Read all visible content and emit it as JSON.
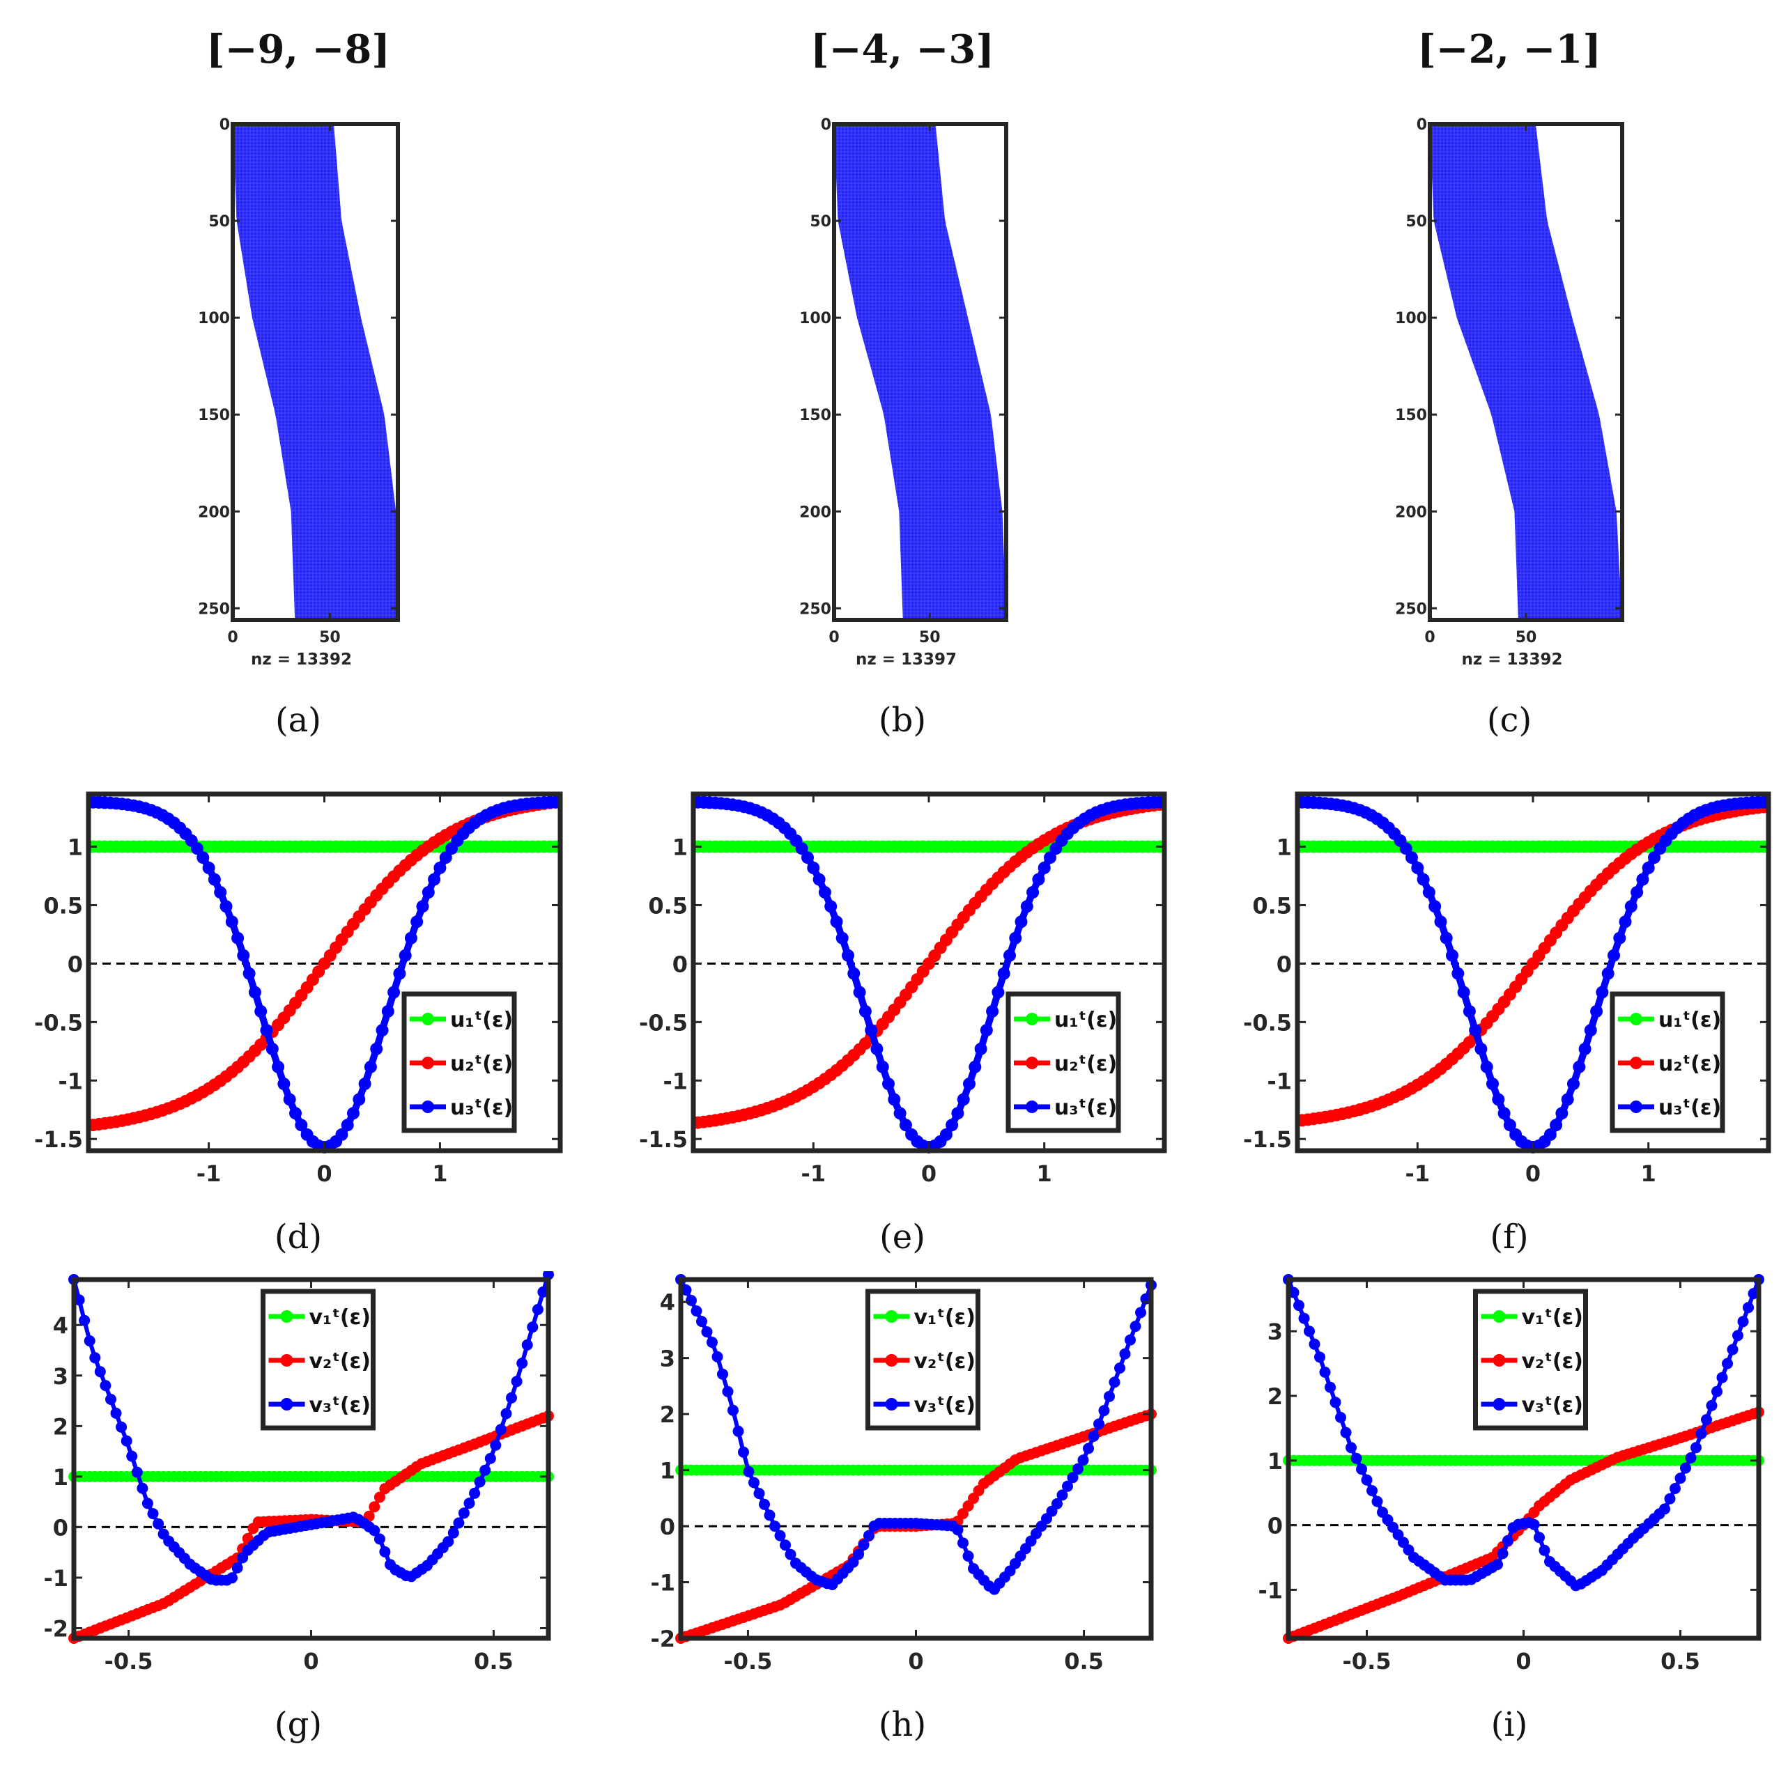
{
  "chart_data": [
    {
      "panel": "a",
      "type": "spy",
      "title": "[−9, −8]",
      "caption": "(a)",
      "xlabel": "nz = 13392",
      "xlim": [
        0,
        85
      ],
      "ylim": [
        0,
        256
      ],
      "xticks": [
        0,
        50
      ],
      "yticks": [
        0,
        50,
        100,
        150,
        200,
        250
      ],
      "nz": 13392,
      "band_left": [
        [
          0,
          0
        ],
        [
          50,
          2
        ],
        [
          100,
          10
        ],
        [
          150,
          22
        ],
        [
          200,
          30
        ],
        [
          256,
          32
        ]
      ],
      "band_right": [
        [
          0,
          52
        ],
        [
          50,
          56
        ],
        [
          100,
          66
        ],
        [
          150,
          78
        ],
        [
          200,
          84
        ],
        [
          256,
          85
        ]
      ]
    },
    {
      "panel": "b",
      "type": "spy",
      "title": "[−4, −3]",
      "caption": "(b)",
      "xlabel": "nz = 13397",
      "xlim": [
        0,
        90
      ],
      "ylim": [
        0,
        256
      ],
      "xticks": [
        0,
        50
      ],
      "yticks": [
        0,
        50,
        100,
        150,
        200,
        250
      ],
      "nz": 13397,
      "band_left": [
        [
          0,
          0
        ],
        [
          50,
          2
        ],
        [
          100,
          12
        ],
        [
          150,
          26
        ],
        [
          200,
          34
        ],
        [
          256,
          36
        ]
      ],
      "band_right": [
        [
          0,
          53
        ],
        [
          50,
          58
        ],
        [
          100,
          70
        ],
        [
          150,
          82
        ],
        [
          200,
          88
        ],
        [
          256,
          90
        ]
      ]
    },
    {
      "panel": "c",
      "type": "spy",
      "title": "[−2, −1]",
      "caption": "(c)",
      "xlabel": "nz = 13392",
      "xlim": [
        0,
        100
      ],
      "ylim": [
        0,
        256
      ],
      "xticks": [
        0,
        50
      ],
      "yticks": [
        0,
        50,
        100,
        150,
        200,
        250
      ],
      "nz": 13392,
      "band_left": [
        [
          0,
          0
        ],
        [
          50,
          2
        ],
        [
          100,
          14
        ],
        [
          150,
          32
        ],
        [
          200,
          44
        ],
        [
          256,
          46
        ]
      ],
      "band_right": [
        [
          0,
          55
        ],
        [
          50,
          61
        ],
        [
          100,
          74
        ],
        [
          150,
          88
        ],
        [
          200,
          97
        ],
        [
          256,
          100
        ]
      ]
    },
    {
      "panel": "d",
      "type": "line",
      "caption": "(d)",
      "xlim": [
        -2.04,
        2.04
      ],
      "ylim": [
        -1.6,
        1.45
      ],
      "xticks": [
        -1,
        0,
        1
      ],
      "yticks": [
        -1.5,
        -1,
        -0.5,
        0,
        0.5,
        1
      ],
      "legend": [
        "u₁ᵗ(ε)",
        "u₂ᵗ(ε)",
        "u₃ᵗ(ε)"
      ],
      "legend_position": "lower-right",
      "series": [
        {
          "name": "u₁ᵗ(ε)",
          "color": "#00ff00",
          "kind": "const",
          "value": 1
        },
        {
          "name": "u₂ᵗ(ε)",
          "color": "#ff0000",
          "kind": "tanh",
          "amplitude": 1.38,
          "scale": 1.05
        },
        {
          "name": "u₃ᵗ(ε)",
          "color": "#0000ff",
          "kind": "bell",
          "amplitude": 1.42,
          "sigma": 0.55
        }
      ]
    },
    {
      "panel": "e",
      "type": "line",
      "caption": "(e)",
      "xlim": [
        -2.04,
        2.04
      ],
      "ylim": [
        -1.6,
        1.45
      ],
      "xticks": [
        -1,
        0,
        1
      ],
      "yticks": [
        -1.5,
        -1,
        -0.5,
        0,
        0.5,
        1
      ],
      "legend": [
        "u₁ᵗ(ε)",
        "u₂ᵗ(ε)",
        "u₃ᵗ(ε)"
      ],
      "legend_position": "lower-right",
      "series": [
        {
          "name": "u₁ᵗ(ε)",
          "color": "#00ff00",
          "kind": "const",
          "value": 1
        },
        {
          "name": "u₂ᵗ(ε)",
          "color": "#ff0000",
          "kind": "tanh",
          "amplitude": 1.36,
          "scale": 1.05
        },
        {
          "name": "u₃ᵗ(ε)",
          "color": "#0000ff",
          "kind": "bell",
          "amplitude": 1.42,
          "sigma": 0.55
        }
      ]
    },
    {
      "panel": "f",
      "type": "line",
      "caption": "(f)",
      "xlim": [
        -2.04,
        2.04
      ],
      "ylim": [
        -1.6,
        1.45
      ],
      "xticks": [
        -1,
        0,
        1
      ],
      "yticks": [
        -1.5,
        -1,
        -0.5,
        0,
        0.5,
        1
      ],
      "legend": [
        "u₁ᵗ(ε)",
        "u₂ᵗ(ε)",
        "u₃ᵗ(ε)"
      ],
      "legend_position": "lower-right",
      "series": [
        {
          "name": "u₁ᵗ(ε)",
          "color": "#00ff00",
          "kind": "const",
          "value": 1
        },
        {
          "name": "u₂ᵗ(ε)",
          "color": "#ff0000",
          "kind": "tanh",
          "amplitude": 1.34,
          "scale": 1.05
        },
        {
          "name": "u₃ᵗ(ε)",
          "color": "#0000ff",
          "kind": "bell",
          "amplitude": 1.42,
          "sigma": 0.55
        }
      ]
    },
    {
      "panel": "g",
      "type": "line",
      "caption": "(g)",
      "xlim": [
        -0.65,
        0.65
      ],
      "ylim": [
        -2.2,
        4.9
      ],
      "xticks": [
        -0.5,
        0,
        0.5
      ],
      "yticks": [
        -2,
        -1,
        0,
        1,
        2,
        3,
        4
      ],
      "legend": [
        "v₁ᵗ(ε)",
        "v₂ᵗ(ε)",
        "v₃ᵗ(ε)"
      ],
      "legend_position": "top-center",
      "series": [
        {
          "name": "v₁ᵗ(ε)",
          "color": "#00ff00",
          "points": [
            [
              -0.65,
              1
            ],
            [
              0.65,
              1
            ]
          ]
        },
        {
          "name": "v₂ᵗ(ε)",
          "color": "#ff0000",
          "points": [
            [
              -0.65,
              -2.2
            ],
            [
              -0.4,
              -1.5
            ],
            [
              -0.2,
              -0.6
            ],
            [
              -0.15,
              0.1
            ],
            [
              0,
              0.15
            ],
            [
              0.15,
              0.1
            ],
            [
              0.2,
              0.75
            ],
            [
              0.3,
              1.25
            ],
            [
              0.45,
              1.65
            ],
            [
              0.65,
              2.2
            ]
          ]
        },
        {
          "name": "v₃ᵗ(ε)",
          "color": "#0000ff",
          "points": [
            [
              -0.65,
              4.9
            ],
            [
              -0.6,
              3.5
            ],
            [
              -0.5,
              1.6
            ],
            [
              -0.45,
              0.5
            ],
            [
              -0.4,
              -0.2
            ],
            [
              -0.33,
              -0.75
            ],
            [
              -0.27,
              -1.05
            ],
            [
              -0.22,
              -1.05
            ],
            [
              -0.18,
              -0.5
            ],
            [
              -0.12,
              -0.1
            ],
            [
              0,
              0.05
            ],
            [
              0.12,
              0.2
            ],
            [
              0.18,
              -0.1
            ],
            [
              0.22,
              -0.8
            ],
            [
              0.27,
              -1.0
            ],
            [
              0.32,
              -0.75
            ],
            [
              0.38,
              -0.25
            ],
            [
              0.45,
              0.7
            ],
            [
              0.5,
              1.5
            ],
            [
              0.56,
              2.8
            ],
            [
              0.6,
              3.8
            ],
            [
              0.65,
              5.0
            ]
          ]
        }
      ]
    },
    {
      "panel": "h",
      "type": "line",
      "caption": "(h)",
      "xlim": [
        -0.7,
        0.7
      ],
      "ylim": [
        -2.0,
        4.4
      ],
      "xticks": [
        -0.5,
        0,
        0.5
      ],
      "yticks": [
        -2,
        -1,
        0,
        1,
        2,
        3,
        4
      ],
      "legend": [
        "v₁ᵗ(ε)",
        "v₂ᵗ(ε)",
        "v₃ᵗ(ε)"
      ],
      "legend_position": "top-center",
      "series": [
        {
          "name": "v₁ᵗ(ε)",
          "color": "#00ff00",
          "points": [
            [
              -0.7,
              1
            ],
            [
              0.7,
              1
            ]
          ]
        },
        {
          "name": "v₂ᵗ(ε)",
          "color": "#ff0000",
          "points": [
            [
              -0.7,
              -2.0
            ],
            [
              -0.4,
              -1.4
            ],
            [
              -0.2,
              -0.7
            ],
            [
              -0.12,
              0.0
            ],
            [
              0,
              0.0
            ],
            [
              0.12,
              0.05
            ],
            [
              0.2,
              0.75
            ],
            [
              0.3,
              1.2
            ],
            [
              0.5,
              1.6
            ],
            [
              0.7,
              2.0
            ]
          ]
        },
        {
          "name": "v₃ᵗ(ε)",
          "color": "#0000ff",
          "points": [
            [
              -0.7,
              4.4
            ],
            [
              -0.6,
              3.2
            ],
            [
              -0.55,
              2.2
            ],
            [
              -0.5,
              1.0
            ],
            [
              -0.42,
              0.0
            ],
            [
              -0.36,
              -0.65
            ],
            [
              -0.3,
              -0.95
            ],
            [
              -0.25,
              -1.05
            ],
            [
              -0.18,
              -0.6
            ],
            [
              -0.12,
              0.05
            ],
            [
              0,
              0.05
            ],
            [
              0.12,
              0.0
            ],
            [
              0.17,
              -0.75
            ],
            [
              0.23,
              -1.15
            ],
            [
              0.28,
              -0.8
            ],
            [
              0.35,
              -0.2
            ],
            [
              0.42,
              0.4
            ],
            [
              0.5,
              1.2
            ],
            [
              0.55,
              1.9
            ],
            [
              0.63,
              3.2
            ],
            [
              0.7,
              4.3
            ]
          ]
        }
      ]
    },
    {
      "panel": "i",
      "type": "line",
      "caption": "(i)",
      "xlim": [
        -0.75,
        0.75
      ],
      "ylim": [
        -1.75,
        3.8
      ],
      "xticks": [
        -0.5,
        0,
        0.5
      ],
      "yticks": [
        -1,
        0,
        1,
        2,
        3
      ],
      "legend": [
        "v₁ᵗ(ε)",
        "v₂ᵗ(ε)",
        "v₃ᵗ(ε)"
      ],
      "legend_position": "top-center",
      "series": [
        {
          "name": "v₁ᵗ(ε)",
          "color": "#00ff00",
          "points": [
            [
              -0.75,
              1
            ],
            [
              0.75,
              1
            ]
          ]
        },
        {
          "name": "v₂ᵗ(ε)",
          "color": "#ff0000",
          "points": [
            [
              -0.75,
              -1.75
            ],
            [
              -0.4,
              -1.1
            ],
            [
              -0.1,
              -0.5
            ],
            [
              0,
              0.0
            ],
            [
              0.05,
              0.3
            ],
            [
              0.15,
              0.7
            ],
            [
              0.3,
              1.05
            ],
            [
              0.5,
              1.35
            ],
            [
              0.75,
              1.75
            ]
          ]
        },
        {
          "name": "v₃ᵗ(ε)",
          "color": "#0000ff",
          "points": [
            [
              -0.75,
              3.8
            ],
            [
              -0.65,
              2.6
            ],
            [
              -0.55,
              1.2
            ],
            [
              -0.45,
              0.2
            ],
            [
              -0.35,
              -0.5
            ],
            [
              -0.25,
              -0.85
            ],
            [
              -0.17,
              -0.85
            ],
            [
              -0.08,
              -0.6
            ],
            [
              -0.03,
              0.0
            ],
            [
              0.03,
              0.05
            ],
            [
              0.08,
              -0.55
            ],
            [
              0.17,
              -0.95
            ],
            [
              0.25,
              -0.7
            ],
            [
              0.35,
              -0.2
            ],
            [
              0.45,
              0.25
            ],
            [
              0.55,
              1.2
            ],
            [
              0.65,
              2.5
            ],
            [
              0.75,
              3.8
            ]
          ]
        }
      ]
    }
  ]
}
